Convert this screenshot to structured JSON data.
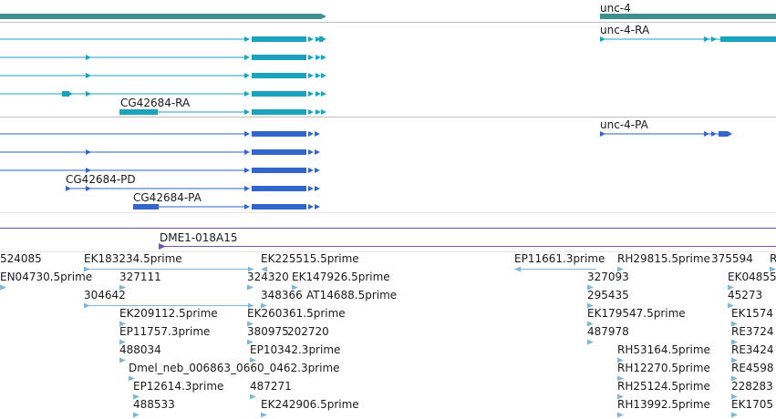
{
  "colors": {
    "gene": "#3f8f8f",
    "transcript_ra": "#1ba3bd",
    "transcript_pa": "#3366cc",
    "clone": "#7755aa",
    "est": "#7fb6d9",
    "divider": "#bdbdbd",
    "label": "#1a1a1a"
  },
  "gene_track": {
    "genes": [
      {
        "label": ""
      },
      {
        "label": "unc-4"
      }
    ]
  },
  "mrna_track": {
    "transcripts": [
      {
        "label": ""
      },
      {
        "label": "unc-4-RA"
      },
      {
        "label": ""
      },
      {
        "label": ""
      },
      {
        "label": ""
      },
      {
        "label": "CG42684-RA"
      }
    ]
  },
  "protein_track": {
    "transcripts": [
      {
        "label": ""
      },
      {
        "label": "unc-4-PA"
      },
      {
        "label": ""
      },
      {
        "label": ""
      },
      {
        "label": "CG42684-PD"
      },
      {
        "label": "CG42684-PA"
      }
    ]
  },
  "clone_track": {
    "clones": [
      {
        "label": "DME1-018A15"
      }
    ]
  },
  "est_track": {
    "features": [
      {
        "label": "524085"
      },
      {
        "label": "EK183234.5prime"
      },
      {
        "label": "EK225515.5prime"
      },
      {
        "label": "EP11661.3prime"
      },
      {
        "label": "RH29815.5prime"
      },
      {
        "label": "375594"
      },
      {
        "label": "R"
      },
      {
        "label": "EN04730.5prime"
      },
      {
        "label": "327111"
      },
      {
        "label": "324320"
      },
      {
        "label": "EK147926.5prime"
      },
      {
        "label": "327093"
      },
      {
        "label": "EK04855"
      },
      {
        "label": "304642"
      },
      {
        "label": "348366"
      },
      {
        "label": "AT14688.5prime"
      },
      {
        "label": "295435"
      },
      {
        "label": "45273"
      },
      {
        "label": "EK209112.5prime"
      },
      {
        "label": "EK260361.5prime"
      },
      {
        "label": "EK179547.5prime"
      },
      {
        "label": "EK1574"
      },
      {
        "label": "EP11757.3prime"
      },
      {
        "label": "380975"
      },
      {
        "label": "202720"
      },
      {
        "label": "487978"
      },
      {
        "label": "RE3724"
      },
      {
        "label": "488034"
      },
      {
        "label": "EP10342.3prime"
      },
      {
        "label": "RH53164.5prime"
      },
      {
        "label": "RE3424"
      },
      {
        "label": "Dmel_neb_006863_0660_0462.3prime"
      },
      {
        "label": "RH12270.5prime"
      },
      {
        "label": "RE4598"
      },
      {
        "label": "EP12614.3prime"
      },
      {
        "label": "487271"
      },
      {
        "label": "RH25124.5prime"
      },
      {
        "label": "228283"
      },
      {
        "label": "488533"
      },
      {
        "label": "EK242906.5prime"
      },
      {
        "label": "RH13992.5prime"
      },
      {
        "label": "EK1705"
      }
    ]
  }
}
